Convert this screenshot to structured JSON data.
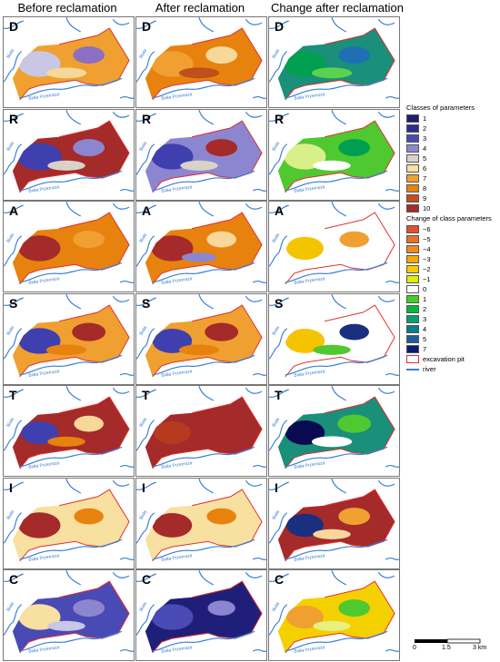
{
  "headers": [
    "Before reclamation",
    "After reclamation",
    "Change after reclamation"
  ],
  "rows": [
    {
      "letter": "D",
      "panels": [
        {
          "base": "#f0a030",
          "patches": [
            [
              "#c8c8e6",
              0.3
            ],
            [
              "#8c6fc2",
              0.2
            ],
            [
              "#f7d89a",
              0.15
            ]
          ]
        },
        {
          "base": "#e8820f",
          "patches": [
            [
              "#f0a030",
              0.3
            ],
            [
              "#f7d89a",
              0.2
            ],
            [
              "#c0501a",
              0.15
            ]
          ]
        },
        {
          "base": "#1a8f7a",
          "patches": [
            [
              "#00a050",
              0.3
            ],
            [
              "#1f6fb5",
              0.2
            ],
            [
              "#5bd24e",
              0.15
            ]
          ]
        }
      ]
    },
    {
      "letter": "R",
      "panels": [
        {
          "base": "#a52a2a",
          "patches": [
            [
              "#3f3faf",
              0.35
            ],
            [
              "#8c86d0",
              0.2
            ],
            [
              "#d9d2c8",
              0.1
            ]
          ]
        },
        {
          "base": "#8c86d0",
          "patches": [
            [
              "#3f3faf",
              0.3
            ],
            [
              "#a52a2a",
              0.2
            ],
            [
              "#d9d2c8",
              0.1
            ]
          ]
        },
        {
          "base": "#50c830",
          "patches": [
            [
              "#d9f08a",
              0.3
            ],
            [
              "#00a050",
              0.2
            ],
            [
              "#ffffff",
              0.1
            ]
          ]
        }
      ]
    },
    {
      "letter": "A",
      "panels": [
        {
          "base": "#e8820f",
          "patches": [
            [
              "#a52a2a",
              0.3
            ],
            [
              "#f0a030",
              0.2
            ]
          ]
        },
        {
          "base": "#e8820f",
          "patches": [
            [
              "#a52a2a",
              0.3
            ],
            [
              "#f7d89a",
              0.15
            ],
            [
              "#8c86d0",
              0.05
            ]
          ]
        },
        {
          "base": "#ffffff",
          "patches": [
            [
              "#f5c400",
              0.2
            ],
            [
              "#f0a030",
              0.15
            ]
          ]
        }
      ]
    },
    {
      "letter": "S",
      "panels": [
        {
          "base": "#f0a030",
          "patches": [
            [
              "#3f3faf",
              0.3
            ],
            [
              "#a52a2a",
              0.25
            ],
            [
              "#e8820f",
              0.15
            ]
          ]
        },
        {
          "base": "#f0a030",
          "patches": [
            [
              "#3f3faf",
              0.25
            ],
            [
              "#a52a2a",
              0.25
            ],
            [
              "#e8820f",
              0.15
            ]
          ]
        },
        {
          "base": "#ffffff",
          "patches": [
            [
              "#f5c400",
              0.25
            ],
            [
              "#1a2f80",
              0.15
            ],
            [
              "#50c830",
              0.1
            ]
          ]
        }
      ]
    },
    {
      "letter": "T",
      "panels": [
        {
          "base": "#a52a2a",
          "patches": [
            [
              "#3f3faf",
              0.2
            ],
            [
              "#f7d89a",
              0.15
            ],
            [
              "#e8820f",
              0.1
            ]
          ]
        },
        {
          "base": "#a52a2a",
          "patches": [
            [
              "#b53a20",
              0.2
            ]
          ]
        },
        {
          "base": "#1a8f7a",
          "patches": [
            [
              "#0a0a50",
              0.25
            ],
            [
              "#50c830",
              0.25
            ],
            [
              "#ffffff",
              0.15
            ]
          ]
        }
      ]
    },
    {
      "letter": "I",
      "panels": [
        {
          "base": "#f7e0a0",
          "patches": [
            [
              "#a52a2a",
              0.3
            ],
            [
              "#e8820f",
              0.15
            ]
          ]
        },
        {
          "base": "#f7e0a0",
          "patches": [
            [
              "#a52a2a",
              0.25
            ],
            [
              "#e8820f",
              0.15
            ]
          ]
        },
        {
          "base": "#a52a2a",
          "patches": [
            [
              "#1a2f80",
              0.2
            ],
            [
              "#f0a030",
              0.2
            ],
            [
              "#f7d89a",
              0.1
            ]
          ]
        }
      ]
    },
    {
      "letter": "C",
      "panels": [
        {
          "base": "#4a4ab5",
          "patches": [
            [
              "#f7e0a0",
              0.3
            ],
            [
              "#8c86d0",
              0.2
            ],
            [
              "#c8c8e6",
              0.1
            ]
          ]
        },
        {
          "base": "#1f1f7a",
          "patches": [
            [
              "#4a4ab5",
              0.3
            ],
            [
              "#8c86d0",
              0.1
            ]
          ]
        },
        {
          "base": "#f5d000",
          "patches": [
            [
              "#f0a030",
              0.2
            ],
            [
              "#50c830",
              0.2
            ],
            [
              "#e8f080",
              0.1
            ]
          ]
        }
      ]
    }
  ],
  "legend": {
    "title1": "Classes of parameters",
    "classes": [
      {
        "label": "1",
        "color": "#1f1f6f"
      },
      {
        "label": "2",
        "color": "#2d2d90"
      },
      {
        "label": "3",
        "color": "#4a4ab5"
      },
      {
        "label": "4",
        "color": "#8c86d0"
      },
      {
        "label": "5",
        "color": "#d9d2c8"
      },
      {
        "label": "6",
        "color": "#f7e0a0"
      },
      {
        "label": "7",
        "color": "#f0a030"
      },
      {
        "label": "8",
        "color": "#e8820f"
      },
      {
        "label": "9",
        "color": "#c0501a"
      },
      {
        "label": "10",
        "color": "#a52a2a"
      }
    ],
    "title2": "Change of class parameters",
    "changes": [
      {
        "label": "−6",
        "color": "#e0502a"
      },
      {
        "label": "−5",
        "color": "#e8702a"
      },
      {
        "label": "−4",
        "color": "#f08a20"
      },
      {
        "label": "−3",
        "color": "#f5a800"
      },
      {
        "label": "−2",
        "color": "#f5cc00"
      },
      {
        "label": "−1",
        "color": "#dcf000"
      },
      {
        "label": "0",
        "color": "#ffffff"
      },
      {
        "label": "1",
        "color": "#40d020"
      },
      {
        "label": "2",
        "color": "#00b840"
      },
      {
        "label": "3",
        "color": "#00a070"
      },
      {
        "label": "4",
        "color": "#00808a"
      },
      {
        "label": "5",
        "color": "#1a5f9a"
      },
      {
        "label": "7",
        "color": "#0a1a70"
      }
    ],
    "pit_label": "excavation pit",
    "pit_color": "#e03030",
    "river_label": "river",
    "river_color": "#3a7fd5"
  },
  "river_labels": [
    "Biała",
    "Biała Przemsza"
  ],
  "scale": {
    "labels": [
      "0",
      "1.5",
      "3 km"
    ]
  }
}
